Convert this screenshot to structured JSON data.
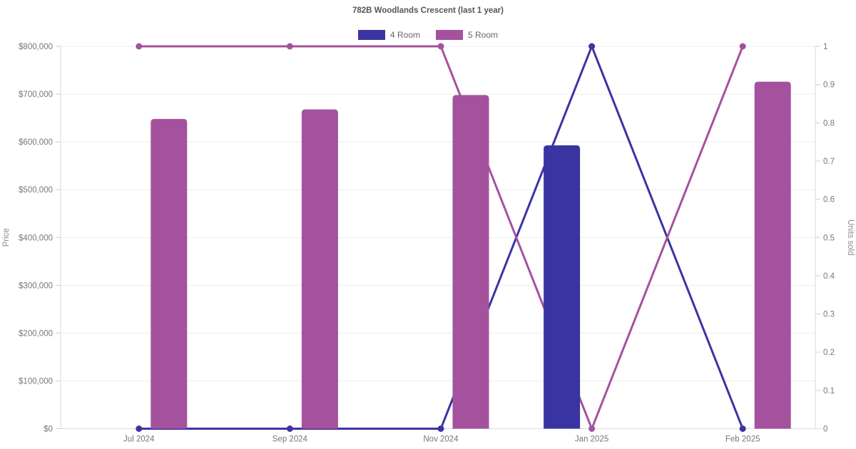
{
  "chart_data": {
    "type": "bar+line",
    "title": "782B Woodlands Crescent (last 1 year)",
    "legend_position": "top",
    "grid": "horizontal-left-axis-only",
    "categories": [
      "Jul 2024",
      "Sep 2024",
      "Nov 2024",
      "Jan 2025",
      "Feb 2025"
    ],
    "y_left": {
      "label": "Price",
      "min": 0,
      "max": 800000,
      "ticks": [
        0,
        100000,
        200000,
        300000,
        400000,
        500000,
        600000,
        700000,
        800000
      ],
      "tick_labels": [
        "$0",
        "$100,000",
        "$200,000",
        "$300,000",
        "$400,000",
        "$500,000",
        "$600,000",
        "$700,000",
        "$800,000"
      ]
    },
    "y_right": {
      "label": "Units sold",
      "min": 0,
      "max": 1,
      "ticks": [
        0,
        0.1,
        0.2,
        0.3,
        0.4,
        0.5,
        0.6,
        0.7,
        0.8,
        0.9,
        1
      ],
      "tick_labels": [
        "0",
        "0.1",
        "0.2",
        "0.3",
        "0.4",
        "0.5",
        "0.6",
        "0.7",
        "0.8",
        "0.9",
        "1"
      ]
    },
    "series": [
      {
        "name": "4 Room",
        "color": "#3a34a3",
        "bar_values": [
          null,
          null,
          null,
          593000,
          null
        ],
        "line_values": [
          0,
          0,
          0,
          1,
          0
        ]
      },
      {
        "name": "5 Room",
        "color": "#a4529e",
        "bar_values": [
          648000,
          668000,
          698000,
          null,
          726000
        ],
        "line_values": [
          1,
          1,
          1,
          0,
          1
        ]
      }
    ],
    "colors": {
      "gridline": "#ececec",
      "axis_line": "#d9d9d9",
      "tick_mark": "#cfcfcf",
      "title_text": "#565656",
      "tick_text": "#767676",
      "axis_title_text": "#8a8a8a"
    }
  }
}
